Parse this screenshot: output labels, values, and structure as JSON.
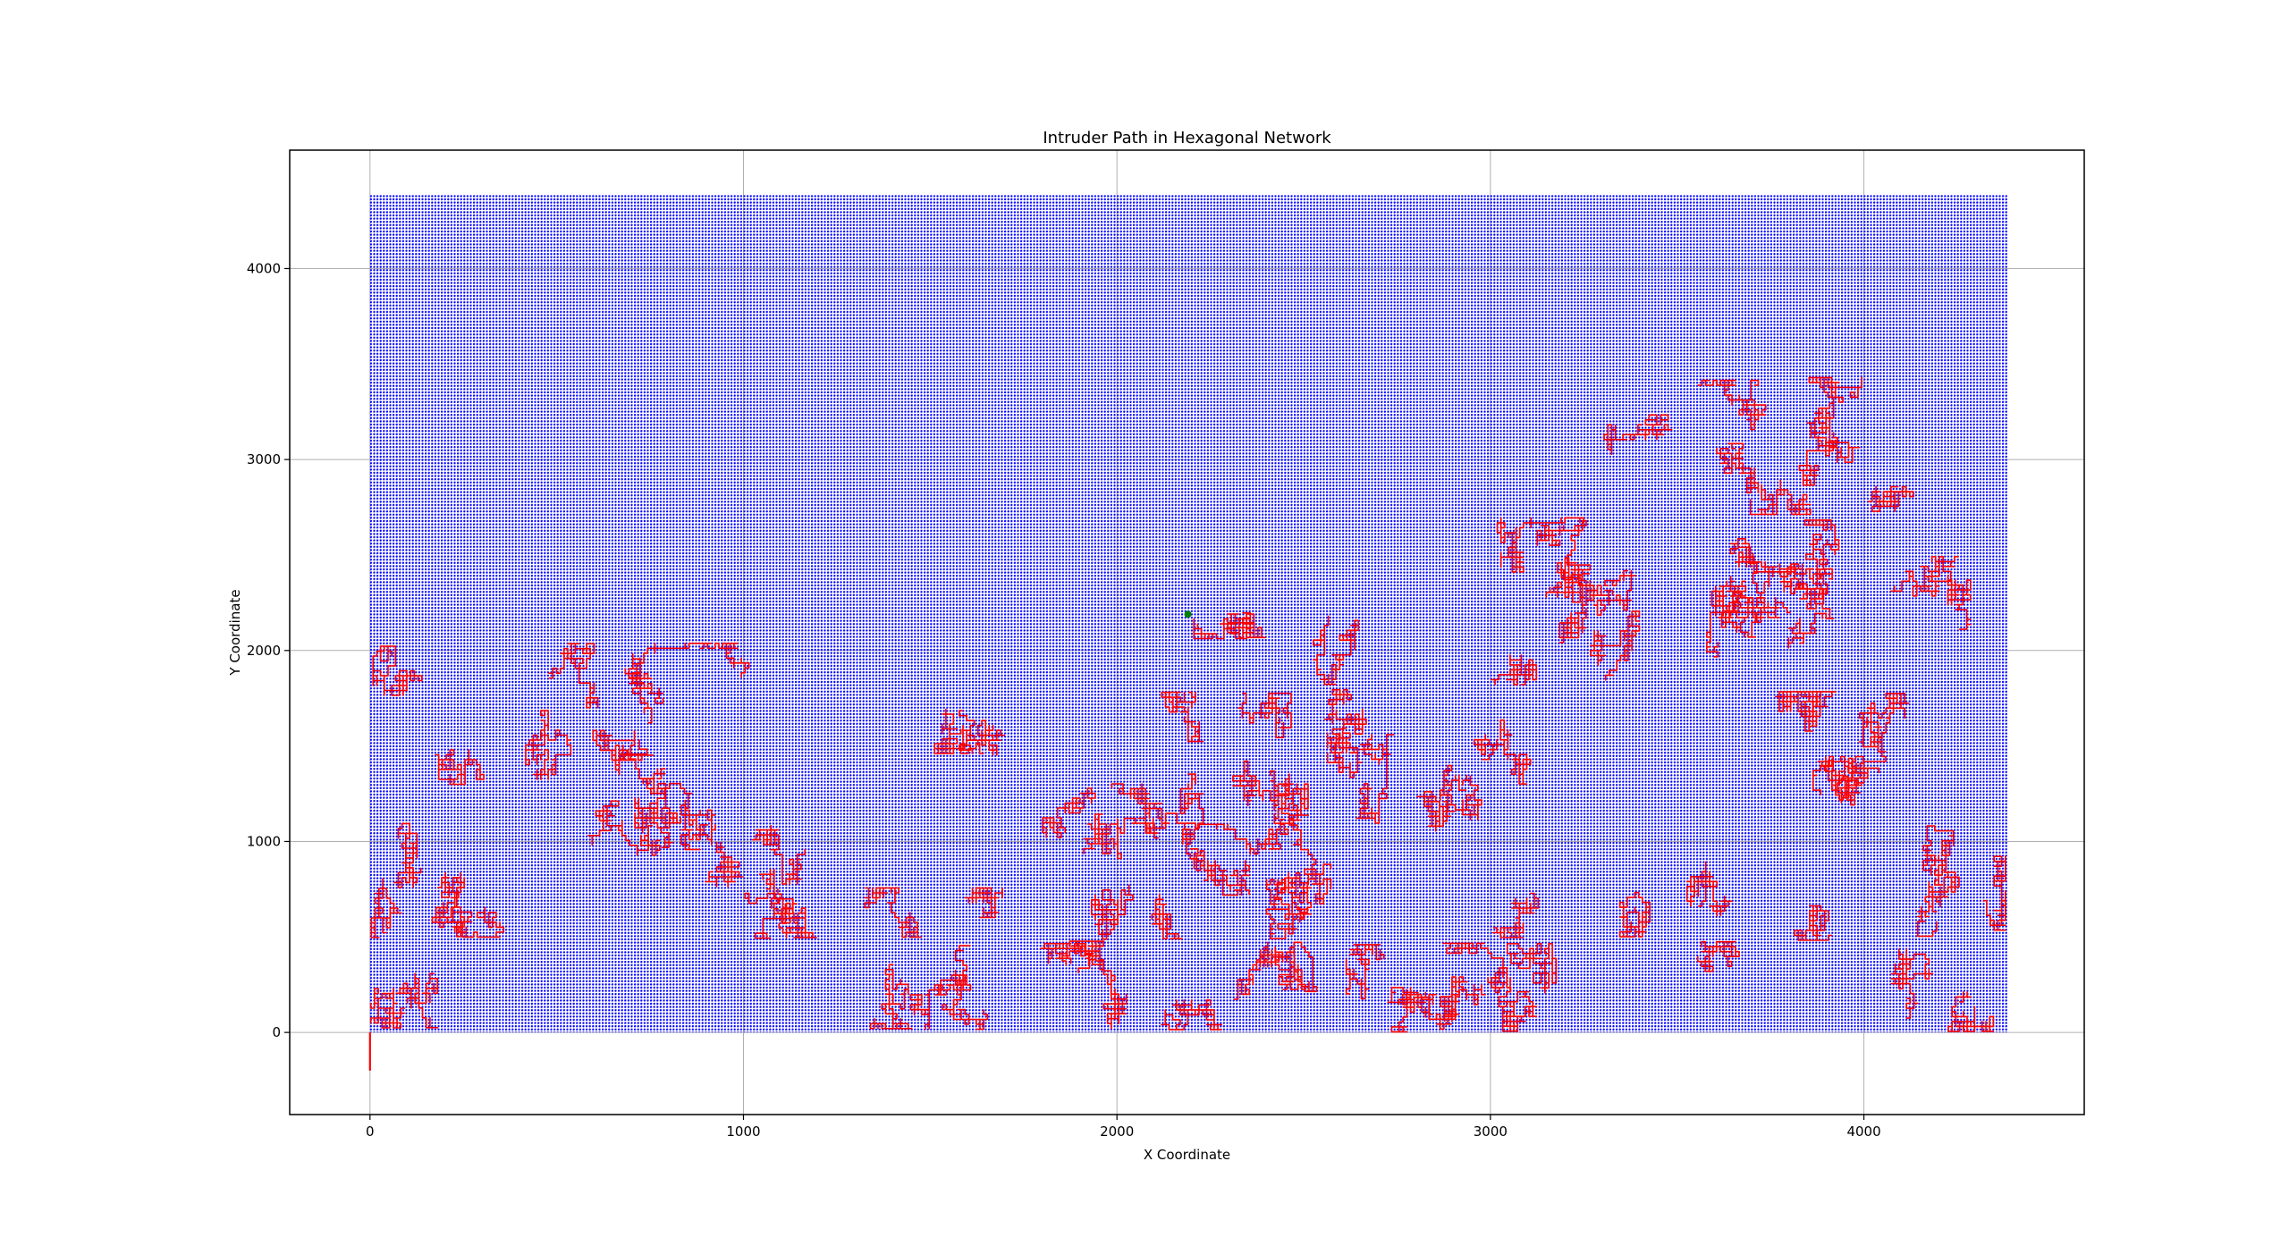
{
  "chart_data": {
    "type": "scatter",
    "title": "Intruder Path in Hexagonal Network",
    "xlabel": "X Coordinate",
    "ylabel": "Y Coordinate",
    "xlim": [
      -215,
      4590
    ],
    "ylim": [
      -430,
      4620
    ],
    "xticks": [
      0,
      1000,
      2000,
      3000,
      4000
    ],
    "yticks": [
      0,
      1000,
      2000,
      3000,
      4000
    ],
    "grid": true,
    "series": [
      {
        "kind": "node-grid",
        "color": "#0000ff",
        "x_range": [
          0,
          4385
        ],
        "y_range": [
          0,
          4385
        ]
      },
      {
        "kind": "path",
        "color": "#ff0000",
        "start": [
          0,
          -200
        ],
        "end_marker": [
          2190,
          2190
        ],
        "end_marker_color": "#008000",
        "regions": [
          {
            "x": [
              0,
              4385
            ],
            "y": [
              0,
              480
            ]
          },
          {
            "x": [
              0,
              1200
            ],
            "y": [
              480,
              2040
            ]
          },
          {
            "x": [
              1200,
              1800
            ],
            "y": [
              480,
              780
            ]
          },
          {
            "x": [
              1400,
              1800
            ],
            "y": [
              1450,
              2040
            ]
          },
          {
            "x": [
              1800,
              4385
            ],
            "y": [
              480,
              1800
            ]
          },
          {
            "x": [
              2500,
              4385
            ],
            "y": [
              1800,
              2700
            ]
          },
          {
            "x": [
              3300,
              4385
            ],
            "y": [
              2700,
              3440
            ]
          },
          {
            "x": [
              2200,
              2400
            ],
            "y": [
              2050,
              2200
            ]
          }
        ]
      }
    ]
  }
}
